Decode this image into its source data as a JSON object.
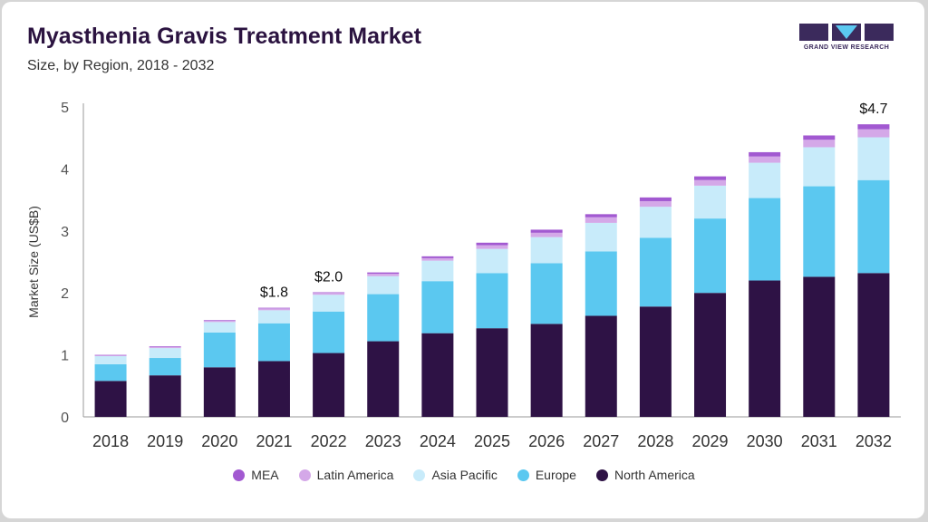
{
  "header": {
    "title": "Myasthenia Gravis Treatment Market",
    "subtitle": "Size, by Region, 2018 - 2032"
  },
  "brand": {
    "name": "GRAND VIEW RESEARCH",
    "icon": "gvr-logo-icon",
    "color": "#3b2a5c"
  },
  "chart_data": {
    "type": "bar",
    "stacked": true,
    "categories": [
      "2018",
      "2019",
      "2020",
      "2021",
      "2022",
      "2023",
      "2024",
      "2025",
      "2026",
      "2027",
      "2028",
      "2029",
      "2030",
      "2031",
      "2032"
    ],
    "series": [
      {
        "name": "North America",
        "color": "#2e1245",
        "values": [
          0.58,
          0.67,
          0.8,
          0.9,
          1.03,
          1.22,
          1.35,
          1.43,
          1.5,
          1.63,
          1.78,
          2.0,
          2.2,
          2.26,
          2.32
        ]
      },
      {
        "name": "Europe",
        "color": "#5bc8f0",
        "values": [
          0.27,
          0.28,
          0.56,
          0.61,
          0.67,
          0.76,
          0.84,
          0.89,
          0.98,
          1.04,
          1.11,
          1.2,
          1.33,
          1.46,
          1.5
        ]
      },
      {
        "name": "Asia Pacific",
        "color": "#c8ebfa",
        "values": [
          0.13,
          0.16,
          0.17,
          0.21,
          0.27,
          0.29,
          0.33,
          0.39,
          0.42,
          0.46,
          0.5,
          0.53,
          0.57,
          0.63,
          0.69
        ]
      },
      {
        "name": "Latin America",
        "color": "#d4a8e8",
        "values": [
          0.01,
          0.02,
          0.02,
          0.03,
          0.03,
          0.04,
          0.04,
          0.06,
          0.07,
          0.09,
          0.09,
          0.09,
          0.1,
          0.12,
          0.13
        ]
      },
      {
        "name": "MEA",
        "color": "#a259d1",
        "values": [
          0.01,
          0.01,
          0.01,
          0.01,
          0.01,
          0.02,
          0.03,
          0.04,
          0.05,
          0.05,
          0.06,
          0.06,
          0.07,
          0.07,
          0.08
        ]
      }
    ],
    "totals_labels": [
      {
        "category": "2021",
        "text": "$1.8"
      },
      {
        "category": "2022",
        "text": "$2.0"
      },
      {
        "category": "2032",
        "text": "$4.7"
      }
    ],
    "title": "Myasthenia Gravis Treatment Market",
    "subtitle": "Size, by Region, 2018 - 2032",
    "xlabel": "",
    "ylabel": "Market Size (US$B)",
    "ylim": [
      0,
      5
    ],
    "yticks": [
      "0",
      "1",
      "2",
      "3",
      "4",
      "5"
    ],
    "grid": false,
    "legend_position": "bottom",
    "legend_order": [
      "MEA",
      "Latin America",
      "Asia Pacific",
      "Europe",
      "North America"
    ]
  }
}
